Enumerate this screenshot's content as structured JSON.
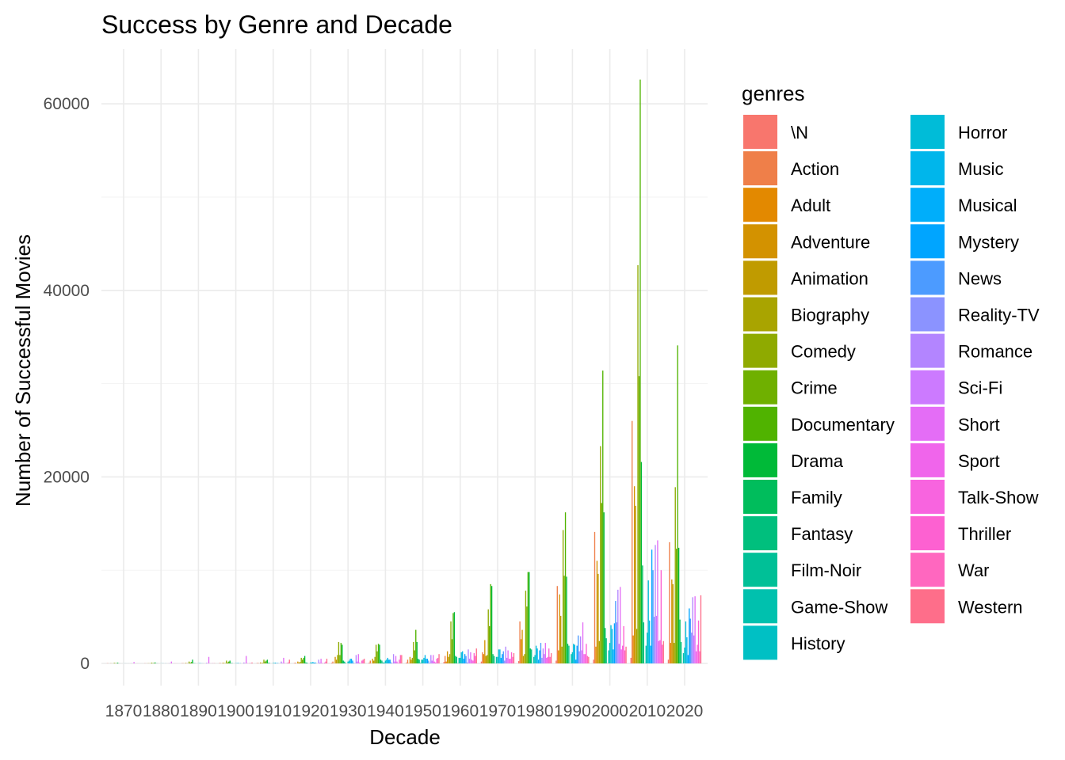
{
  "chart_data": {
    "type": "bar",
    "title": "Success by Genre and Decade",
    "xlabel": "Decade",
    "ylabel": "Number of Successful Movies",
    "ylim": [
      0,
      65000
    ],
    "yticks": [
      0,
      20000,
      40000,
      60000
    ],
    "grid": true,
    "legend": {
      "title": "genres",
      "placement": "right",
      "columns": 2
    },
    "categories": [
      "1870",
      "1880",
      "1890",
      "1900",
      "1910",
      "1920",
      "1930",
      "1940",
      "1950",
      "1960",
      "1970",
      "1980",
      "1990",
      "2000",
      "2010",
      "2020"
    ],
    "series": [
      {
        "name": "\\N",
        "color": "#F8766D",
        "values": [
          20,
          15,
          30,
          40,
          30,
          40,
          60,
          80,
          100,
          150,
          200,
          250,
          300,
          400,
          600,
          400
        ]
      },
      {
        "name": "Action",
        "color": "#EF7F49",
        "values": [
          10,
          10,
          20,
          30,
          50,
          80,
          200,
          300,
          400,
          800,
          1200,
          4500,
          8300,
          14100,
          26000,
          13000
        ]
      },
      {
        "name": "Adult",
        "color": "#E38900",
        "values": [
          0,
          0,
          0,
          0,
          0,
          0,
          5,
          10,
          30,
          200,
          1000,
          2600,
          1400,
          1800,
          3000,
          2200
        ]
      },
      {
        "name": "Adventure",
        "color": "#D39200",
        "values": [
          15,
          20,
          50,
          80,
          100,
          200,
          700,
          500,
          700,
          1300,
          2500,
          3600,
          7400,
          11000,
          19000,
          9000
        ]
      },
      {
        "name": "Animation",
        "color": "#C09B00",
        "values": [
          5,
          10,
          20,
          30,
          50,
          100,
          400,
          300,
          400,
          700,
          800,
          800,
          5100,
          9600,
          16900,
          8500
        ]
      },
      {
        "name": "Biography",
        "color": "#A9A400",
        "values": [
          5,
          10,
          20,
          30,
          60,
          150,
          900,
          700,
          600,
          1000,
          900,
          1000,
          1800,
          2400,
          3700,
          2200
        ]
      },
      {
        "name": "Comedy",
        "color": "#8FAA00",
        "values": [
          60,
          80,
          200,
          300,
          400,
          600,
          2300,
          2000,
          2300,
          4500,
          5800,
          7800,
          14300,
          23300,
          42700,
          18900
        ]
      },
      {
        "name": "Crime",
        "color": "#6FB000",
        "values": [
          20,
          30,
          80,
          100,
          200,
          400,
          900,
          1300,
          1400,
          2600,
          4000,
          6100,
          9400,
          17200,
          30800,
          12300
        ]
      },
      {
        "name": "Documentary",
        "color": "#50B300",
        "values": [
          30,
          50,
          150,
          200,
          300,
          600,
          2200,
          2100,
          3600,
          5400,
          8500,
          9800,
          16200,
          31400,
          62600,
          34100
        ]
      },
      {
        "name": "Drama",
        "color": "#00BA38",
        "values": [
          80,
          100,
          400,
          300,
          400,
          800,
          2000,
          2000,
          2300,
          5500,
          8300,
          9800,
          9300,
          16200,
          21600,
          12400
        ]
      },
      {
        "name": "Family",
        "color": "#00BD5C",
        "values": [
          5,
          10,
          20,
          40,
          60,
          100,
          300,
          400,
          500,
          800,
          1000,
          1600,
          2100,
          3800,
          10500,
          4700
        ]
      },
      {
        "name": "Fantasy",
        "color": "#00BF7D",
        "values": [
          5,
          10,
          20,
          30,
          40,
          80,
          200,
          300,
          400,
          700,
          800,
          1500,
          1900,
          2700,
          4400,
          2300
        ]
      },
      {
        "name": "Film-Noir",
        "color": "#00C097",
        "values": [
          0,
          0,
          0,
          0,
          0,
          0,
          50,
          100,
          50,
          20,
          10,
          10,
          10,
          10,
          10,
          10
        ]
      },
      {
        "name": "Game-Show",
        "color": "#00C1AE",
        "values": [
          0,
          0,
          0,
          0,
          0,
          0,
          0,
          100,
          400,
          600,
          700,
          700,
          1000,
          1400,
          1900,
          1100
        ]
      },
      {
        "name": "History",
        "color": "#00C0C4",
        "values": [
          5,
          10,
          20,
          30,
          50,
          100,
          200,
          300,
          400,
          600,
          700,
          900,
          1200,
          2200,
          3300,
          1700
        ]
      },
      {
        "name": "Horror",
        "color": "#00BCD8",
        "values": [
          5,
          10,
          30,
          30,
          50,
          100,
          300,
          400,
          600,
          1200,
          1500,
          1900,
          2100,
          4100,
          8900,
          4500
        ]
      },
      {
        "name": "Music",
        "color": "#00B6EB",
        "values": [
          5,
          10,
          20,
          50,
          80,
          150,
          500,
          600,
          900,
          1300,
          1500,
          1600,
          2000,
          3700,
          4600,
          2800
        ]
      },
      {
        "name": "Musical",
        "color": "#00AEFA",
        "values": [
          0,
          0,
          10,
          10,
          20,
          80,
          500,
          400,
          500,
          500,
          600,
          400,
          400,
          1500,
          1900,
          900
        ]
      },
      {
        "name": "Mystery",
        "color": "#00A5FF",
        "values": [
          5,
          10,
          10,
          20,
          40,
          100,
          300,
          400,
          500,
          1000,
          1000,
          1400,
          1900,
          4300,
          12200,
          5900
        ]
      },
      {
        "name": "News",
        "color": "#4C9BFF",
        "values": [
          0,
          0,
          0,
          0,
          10,
          20,
          50,
          100,
          300,
          800,
          1300,
          2200,
          3000,
          6700,
          10000,
          4800
        ]
      },
      {
        "name": "Reality-TV",
        "color": "#8B93FF",
        "values": [
          0,
          0,
          0,
          0,
          0,
          0,
          10,
          20,
          50,
          100,
          300,
          600,
          1300,
          4400,
          5000,
          3300
        ]
      },
      {
        "name": "Romance",
        "color": "#B385FF",
        "values": [
          10,
          20,
          60,
          100,
          200,
          400,
          900,
          1000,
          900,
          1500,
          1800,
          1600,
          2900,
          7900,
          12700,
          7100
        ]
      },
      {
        "name": "Sci-Fi",
        "color": "#CC7AFF",
        "values": [
          5,
          10,
          20,
          30,
          40,
          80,
          200,
          200,
          300,
          500,
          600,
          1000,
          1400,
          2100,
          5100,
          3000
        ]
      },
      {
        "name": "Short",
        "color": "#E46DF6",
        "values": [
          150,
          200,
          700,
          800,
          600,
          500,
          1000,
          800,
          900,
          1200,
          1400,
          2200,
          4400,
          8200,
          13200,
          7200
        ]
      },
      {
        "name": "Sport",
        "color": "#F065EB",
        "values": [
          0,
          0,
          10,
          20,
          30,
          60,
          100,
          200,
          200,
          400,
          500,
          600,
          1000,
          1500,
          2400,
          1300
        ]
      },
      {
        "name": "Talk-Show",
        "color": "#F864DF",
        "values": [
          0,
          0,
          0,
          0,
          0,
          0,
          10,
          30,
          100,
          300,
          500,
          700,
          1000,
          1900,
          2500,
          2000
        ]
      },
      {
        "name": "Thriller",
        "color": "#FD61D1",
        "values": [
          5,
          10,
          20,
          30,
          40,
          80,
          300,
          400,
          500,
          1100,
          1200,
          1600,
          2100,
          4000,
          10000,
          4600
        ]
      },
      {
        "name": "War",
        "color": "#FF67BF",
        "values": [
          0,
          5,
          10,
          30,
          100,
          200,
          400,
          900,
          600,
          800,
          700,
          700,
          800,
          1400,
          2000,
          1300
        ]
      },
      {
        "name": "Western",
        "color": "#FE6E8A",
        "values": [
          0,
          5,
          20,
          100,
          400,
          500,
          500,
          900,
          1000,
          1600,
          1100,
          1100,
          700,
          1800,
          2400,
          7300
        ]
      }
    ]
  }
}
